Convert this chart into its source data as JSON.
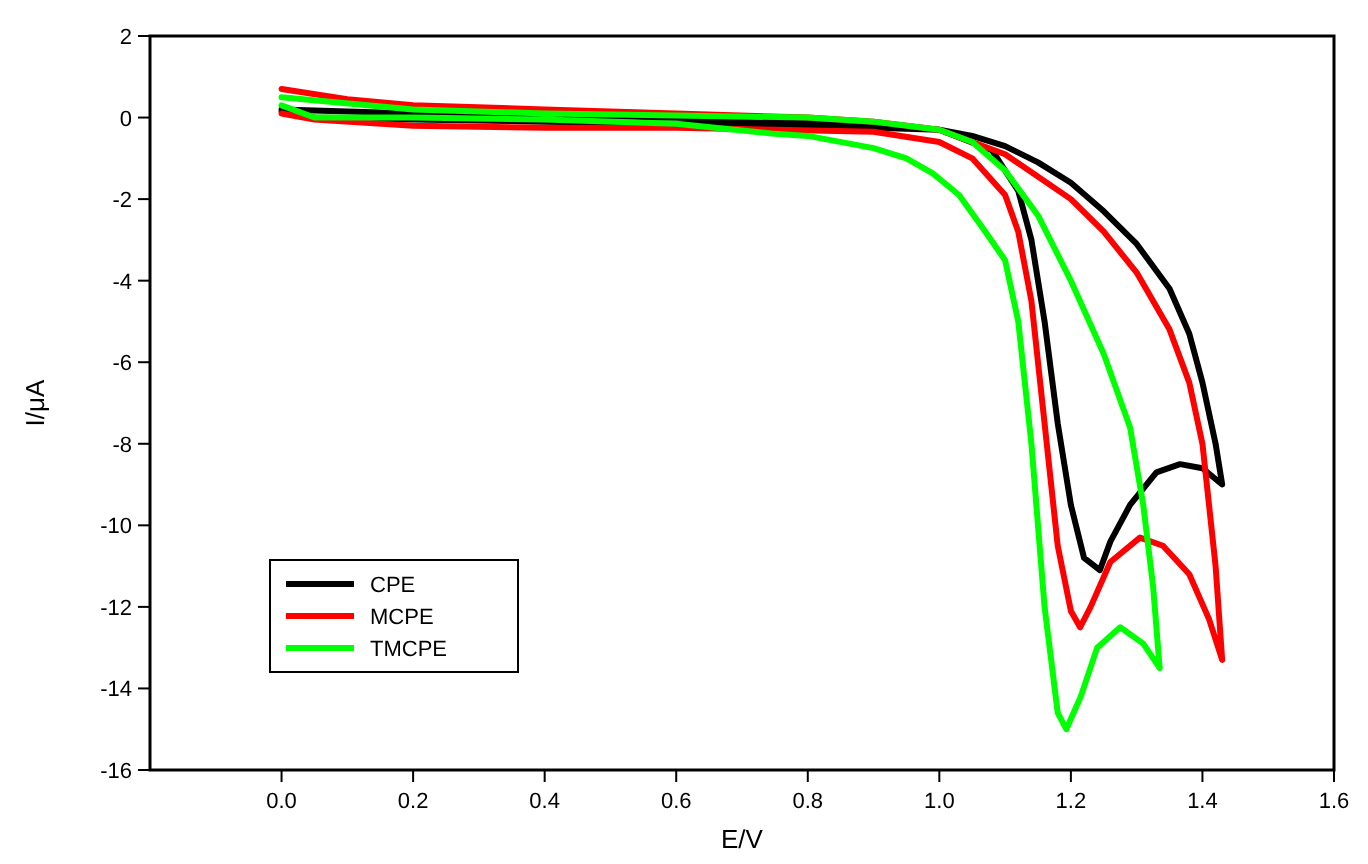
{
  "chart_data": {
    "type": "line",
    "xlabel": "E/V",
    "ylabel": "I/μA",
    "xlim": [
      -0.2,
      1.6
    ],
    "ylim": [
      -16,
      2
    ],
    "xticks": [
      {
        "value": 0,
        "label": "0.0"
      },
      0.2,
      0.4,
      0.6,
      0.8,
      {
        "value": 1,
        "label": "1.0"
      },
      1.2,
      1.4,
      1.6
    ],
    "yticks": [
      -16,
      -14,
      -12,
      -10,
      -8,
      -6,
      -4,
      -2,
      0,
      2
    ],
    "grid": false,
    "legend": "bottom left",
    "marker": "none",
    "line_style": "solid",
    "series": [
      {
        "name": "CPE",
        "color": "#000000",
        "x": [
          0,
          0.2,
          0.4,
          0.6,
          0.8,
          0.9,
          1.0,
          1.05,
          1.1,
          1.15,
          1.2,
          1.25,
          1.3,
          1.35,
          1.38,
          1.4,
          1.42,
          1.43,
          1.4,
          1.366,
          1.33,
          1.29,
          1.26,
          1.244,
          1.22,
          1.2,
          1.18,
          1.16,
          1.14,
          1.12,
          1.08,
          1.0,
          0.8,
          0.6,
          0.4,
          0.2,
          0.05,
          0
        ],
        "values": [
          0.2,
          0.1,
          0.05,
          0,
          -0.1,
          -0.2,
          -0.3,
          -0.45,
          -0.7,
          -1.1,
          -1.6,
          -2.3,
          -3.1,
          -4.2,
          -5.3,
          -6.5,
          -8.0,
          -9.0,
          -8.6,
          -8.5,
          -8.7,
          -9.5,
          -10.4,
          -11.1,
          -10.8,
          -9.5,
          -7.5,
          -5,
          -3,
          -1.8,
          -0.8,
          -0.3,
          -0.2,
          -0.15,
          -0.1,
          -0.05,
          0,
          0.15
        ]
      },
      {
        "name": "MCPE",
        "color": "#ff0000",
        "x": [
          0,
          0.1,
          0.2,
          0.4,
          0.6,
          0.8,
          0.9,
          1.0,
          1.1,
          1.2,
          1.25,
          1.3,
          1.35,
          1.38,
          1.4,
          1.42,
          1.43,
          1.41,
          1.38,
          1.34,
          1.305,
          1.26,
          1.23,
          1.214,
          1.2,
          1.18,
          1.16,
          1.14,
          1.12,
          1.1,
          1.05,
          1.0,
          0.9,
          0.6,
          0.4,
          0.2,
          0.05,
          0
        ],
        "values": [
          0.7,
          0.45,
          0.3,
          0.2,
          0.1,
          0,
          -0.1,
          -0.3,
          -0.9,
          -2.0,
          -2.8,
          -3.8,
          -5.2,
          -6.5,
          -8,
          -11,
          -13.3,
          -12.3,
          -11.2,
          -10.5,
          -10.3,
          -10.9,
          -12,
          -12.5,
          -12.1,
          -10.5,
          -7.5,
          -4.5,
          -2.8,
          -1.9,
          -1.0,
          -0.6,
          -0.35,
          -0.25,
          -0.25,
          -0.2,
          -0.05,
          0.1
        ]
      },
      {
        "name": "TMCPE",
        "color": "#00ff00",
        "x": [
          0,
          0.2,
          0.4,
          0.6,
          0.8,
          0.9,
          1.0,
          1.05,
          1.1,
          1.15,
          1.2,
          1.25,
          1.29,
          1.31,
          1.325,
          1.335,
          1.31,
          1.275,
          1.24,
          1.215,
          1.193,
          1.18,
          1.16,
          1.14,
          1.12,
          1.1,
          1.07,
          1.03,
          0.99,
          0.95,
          0.9,
          0.8,
          0.75,
          0.6,
          0.4,
          0.2,
          0.05,
          0
        ],
        "values": [
          0.5,
          0.2,
          0.1,
          0.05,
          0,
          -0.1,
          -0.3,
          -0.6,
          -1.3,
          -2.4,
          -4.0,
          -5.8,
          -7.6,
          -9.5,
          -11.5,
          -13.5,
          -12.9,
          -12.5,
          -13.0,
          -14.2,
          -15.0,
          -14.6,
          -12,
          -8,
          -5,
          -3.5,
          -2.8,
          -1.9,
          -1.37,
          -1.0,
          -0.75,
          -0.45,
          -0.4,
          -0.15,
          -0.05,
          0,
          0,
          0.3
        ]
      }
    ]
  }
}
